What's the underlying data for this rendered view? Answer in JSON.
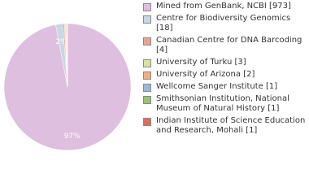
{
  "chart_data": {
    "type": "pie",
    "categories": [
      "Mined from GenBank, NCBI [973]",
      "Centre for Biodiversity Genomics [18]",
      "Canadian Centre for DNA Barcoding [4]",
      "University of Turku [3]",
      "University of Arizona [2]",
      "Wellcome Sanger Institute [1]",
      "Smithsonian Institution, National Museum of Natural History [1]",
      "Indian Institute of Science Education and Research, Mohali [1]"
    ],
    "values": [
      973,
      18,
      4,
      3,
      2,
      1,
      1,
      1
    ],
    "value_labels": [
      "97%",
      "2%",
      null,
      null,
      null,
      null,
      null,
      null
    ],
    "colors": [
      "#dfbfdf",
      "#c7d7e6",
      "#e6a596",
      "#d9e39a",
      "#eeb07f",
      "#9fb5dc",
      "#99c276",
      "#dd6d5d"
    ],
    "legend": "right"
  }
}
